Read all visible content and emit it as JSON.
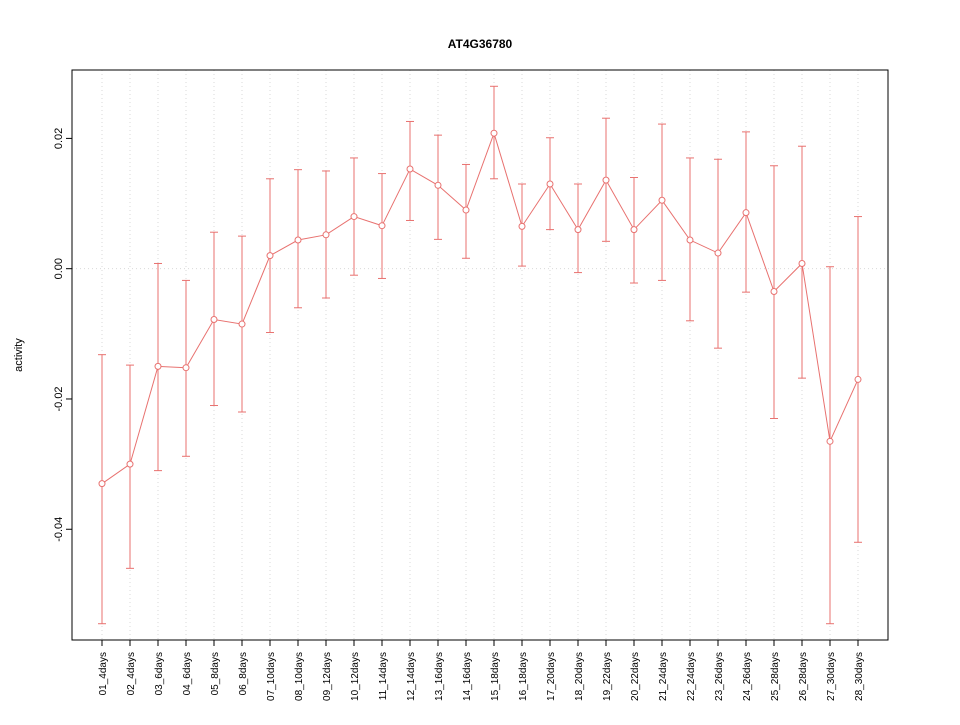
{
  "title": "AT4G36780",
  "chart_data": {
    "type": "line",
    "title": "AT4G36780",
    "xlabel": "",
    "ylabel": "activity",
    "ylim": [
      -0.057,
      0.0305
    ],
    "yticks": [
      -0.04,
      -0.02,
      0,
      0.02
    ],
    "grid": "dotted light-gray vertical line at each category, dotted horizontal line at 0",
    "legend": "none",
    "marker": "open-circle",
    "error_bars": true,
    "series_color": "#e8716f",
    "grid_color": "#d9d9d9",
    "axis_color": "#000000",
    "categories": [
      "01_4days",
      "02_4days",
      "03_6days",
      "04_6days",
      "05_8days",
      "06_8days",
      "07_10days",
      "08_10days",
      "09_12days",
      "10_12days",
      "11_14days",
      "12_14days",
      "13_16days",
      "14_16days",
      "15_18days",
      "16_18days",
      "17_20days",
      "18_20days",
      "19_22days",
      "20_22days",
      "21_24days",
      "22_24days",
      "23_26days",
      "24_26days",
      "25_28days",
      "26_28days",
      "27_30days",
      "28_30days"
    ],
    "values": [
      -0.033,
      -0.03,
      -0.015,
      -0.0152,
      -0.0078,
      -0.0085,
      0.002,
      0.0044,
      0.0052,
      0.008,
      0.0066,
      0.0153,
      0.0128,
      0.009,
      0.0208,
      0.0065,
      0.013,
      0.006,
      0.0136,
      0.006,
      0.0105,
      0.0044,
      0.0024,
      0.0086,
      -0.0035,
      0.0008,
      -0.0265,
      -0.017
    ],
    "error_low": [
      -0.0545,
      -0.046,
      -0.031,
      -0.0288,
      -0.021,
      -0.022,
      -0.0098,
      -0.006,
      -0.0045,
      -0.001,
      -0.0015,
      0.0074,
      0.0045,
      0.0016,
      0.0138,
      0.0004,
      0.006,
      -0.0006,
      0.0042,
      -0.0022,
      -0.0018,
      -0.008,
      -0.0122,
      -0.0036,
      -0.023,
      -0.0168,
      -0.0545,
      -0.042
    ],
    "error_high": [
      -0.0132,
      -0.0148,
      0.0008,
      -0.0018,
      0.0056,
      0.005,
      0.0138,
      0.0152,
      0.015,
      0.017,
      0.0146,
      0.0226,
      0.0205,
      0.016,
      0.028,
      0.013,
      0.0201,
      0.013,
      0.0231,
      0.014,
      0.0222,
      0.017,
      0.0168,
      0.021,
      0.0158,
      0.0188,
      0.0003,
      0.008
    ]
  }
}
